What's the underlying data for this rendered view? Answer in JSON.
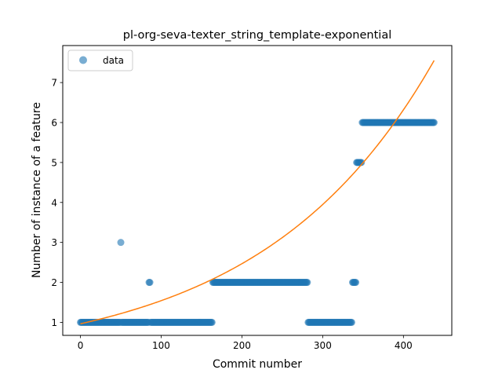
{
  "chart_data": {
    "type": "scatter",
    "title": "pl-org-seva-texter_string_template-exponential",
    "xlabel": "Commit number",
    "ylabel": "Number of instance of a feature",
    "xlim": [
      -21.9,
      459.9
    ],
    "ylim": [
      0.674,
      7.926
    ],
    "xticks": [
      0,
      100,
      200,
      300,
      400
    ],
    "yticks": [
      1,
      2,
      3,
      4,
      5,
      6,
      7
    ],
    "grid": false,
    "legend": {
      "position": "top-left",
      "entries": [
        "data"
      ]
    },
    "colors": {
      "data": "#1f77b4",
      "fit": "#ff7f0e"
    },
    "series": [
      {
        "name": "data",
        "type": "scatter",
        "segments": [
          {
            "x_start": 0,
            "x_end": 49,
            "y": 1
          },
          {
            "x_start": 50,
            "x_end": 50,
            "y": 3
          },
          {
            "x_start": 51,
            "x_end": 84,
            "y": 1
          },
          {
            "x_start": 85,
            "x_end": 86,
            "y": 2
          },
          {
            "x_start": 87,
            "x_end": 163,
            "y": 1
          },
          {
            "x_start": 164,
            "x_end": 281,
            "y": 2
          },
          {
            "x_start": 282,
            "x_end": 336,
            "y": 1
          },
          {
            "x_start": 337,
            "x_end": 341,
            "y": 2
          },
          {
            "x_start": 342,
            "x_end": 348,
            "y": 5
          },
          {
            "x_start": 349,
            "x_end": 438,
            "y": 6
          }
        ]
      },
      {
        "type": "line",
        "model": "exponential",
        "a": 0.964,
        "b": 0.0047,
        "x_range": [
          0,
          438
        ]
      }
    ]
  }
}
